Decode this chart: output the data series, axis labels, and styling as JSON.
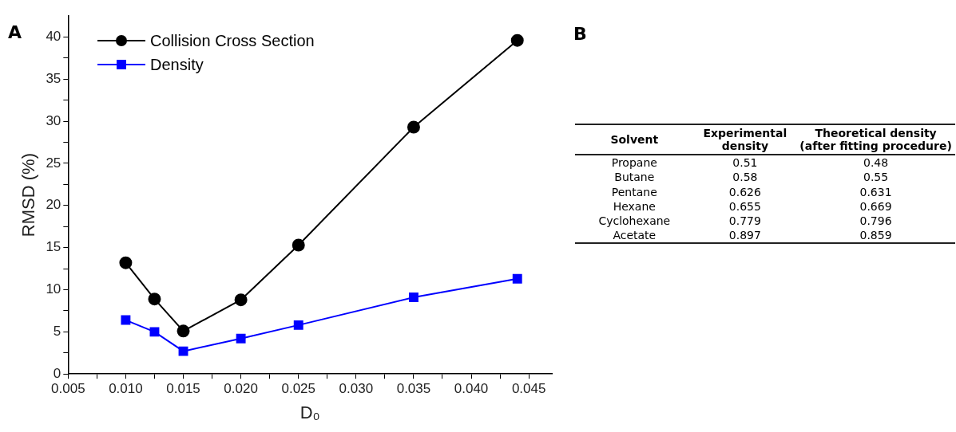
{
  "chart_data": [
    {
      "type": "line",
      "title": "A",
      "xlabel": "D₀",
      "ylabel": "RMSD (%)",
      "x": [
        0.01,
        0.0125,
        0.015,
        0.02,
        0.025,
        0.035,
        0.044
      ],
      "series": [
        {
          "name": "Collision Cross Section",
          "color": "#000000",
          "marker": "circle",
          "values": [
            13.2,
            8.9,
            5.1,
            8.8,
            15.3,
            29.3,
            39.6
          ]
        },
        {
          "name": "Density",
          "color": "#0000ff",
          "marker": "square",
          "values": [
            6.4,
            5.0,
            2.7,
            4.2,
            5.8,
            9.1,
            11.3
          ]
        }
      ],
      "xlim": [
        0.005,
        0.047
      ],
      "xticks": [
        0.005,
        {
          "value": 0.0075,
          "label": null
        },
        {
          "value": 0.01,
          "label": "0.010"
        },
        {
          "value": 0.0125,
          "label": null
        },
        0.015,
        {
          "value": 0.0175,
          "label": null
        },
        {
          "value": 0.02,
          "label": "0.020"
        },
        {
          "value": 0.0225,
          "label": null
        },
        0.025,
        {
          "value": 0.0275,
          "label": null
        },
        {
          "value": 0.03,
          "label": "0.030"
        },
        {
          "value": 0.0325,
          "label": null
        },
        0.035,
        {
          "value": 0.0375,
          "label": null
        },
        {
          "value": 0.04,
          "label": "0.040"
        },
        {
          "value": 0.0425,
          "label": null
        },
        0.045
      ],
      "ylim": [
        0,
        42.5
      ],
      "yticks": [
        0,
        {
          "value": 2.5,
          "label": null
        },
        5,
        {
          "value": 7.5,
          "label": null
        },
        10,
        {
          "value": 12.5,
          "label": null
        },
        15,
        {
          "value": 17.5,
          "label": null
        },
        20,
        {
          "value": 22.5,
          "label": null
        },
        25,
        {
          "value": 27.5,
          "label": null
        },
        30,
        {
          "value": 32.5,
          "label": null
        },
        35,
        {
          "value": 37.5,
          "label": null
        },
        40
      ],
      "grid": false,
      "legend": "top left",
      "line_style": "solid"
    },
    {
      "type": "other",
      "title": "B",
      "xlabel": "Solvent",
      "categories": [
        "Propane",
        "Butane",
        "Pentane",
        "Hexane",
        "Cyclohexane",
        "Acetate"
      ],
      "series": [
        {
          "name": "Experimental density",
          "values": [
            0.51,
            0.58,
            0.626,
            0.655,
            0.779,
            0.897
          ]
        },
        {
          "name": "Theoretical density (after fitting procedure)",
          "values": [
            0.48,
            0.55,
            0.631,
            0.669,
            0.796,
            0.859
          ]
        }
      ],
      "data_labels": true
    }
  ]
}
